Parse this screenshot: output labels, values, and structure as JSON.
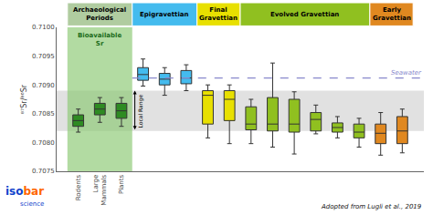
{
  "chart_data": {
    "type": "box",
    "ylabel": "⁸⁷Sr/⁸⁶Sr",
    "categories": [
      "Rodents",
      "Large\nMammals",
      "Plants",
      null,
      null,
      null,
      null,
      null,
      null,
      null,
      null,
      null,
      null,
      null,
      null,
      null
    ],
    "period": [
      "Archaeological\nPeriods",
      "Archaeological\nPeriods",
      "Archaeological\nPeriods",
      "Epigravettian",
      "Epigravettian",
      "Epigravettian",
      "Final\nGravettian",
      "Final\nGravettian",
      "Evolved Gravettian",
      "Evolved Gravettian",
      "Evolved Gravettian",
      "Evolved Gravettian",
      "Evolved Gravettian",
      "Evolved Gravettian",
      "Early\nGravettian",
      "Early\nGravettian"
    ],
    "q1": [
      0.70828,
      0.70848,
      0.70842,
      0.70908,
      0.709,
      0.70902,
      0.70832,
      0.70838,
      0.70822,
      0.7082,
      0.70818,
      0.7082,
      0.70818,
      0.70808,
      0.70798,
      0.70798
    ],
    "median": [
      0.70838,
      0.70858,
      0.70855,
      0.70918,
      0.7091,
      0.70912,
      0.70882,
      0.70875,
      0.70832,
      0.70832,
      0.70832,
      0.7084,
      0.70826,
      0.70818,
      0.70816,
      0.7082
    ],
    "q3": [
      0.70848,
      0.70868,
      0.70868,
      0.7093,
      0.7092,
      0.70925,
      0.7089,
      0.7089,
      0.70862,
      0.70878,
      0.70875,
      0.70852,
      0.70834,
      0.70832,
      0.70832,
      0.70845
    ],
    "whislo": [
      0.70818,
      0.70835,
      0.70828,
      0.70898,
      0.70882,
      0.7089,
      0.70808,
      0.70798,
      0.70798,
      0.70792,
      0.7078,
      0.70815,
      0.70808,
      0.70792,
      0.70778,
      0.70782
    ],
    "whishi": [
      0.70858,
      0.70878,
      0.70878,
      0.70945,
      0.7093,
      0.70935,
      0.709,
      0.709,
      0.70875,
      0.70938,
      0.70888,
      0.70865,
      0.70845,
      0.70842,
      0.70852,
      0.70858
    ],
    "colors": [
      "#2E8B22",
      "#2E8B22",
      "#2E8B22",
      "#44BBEE",
      "#44BBEE",
      "#44BBEE",
      "#E8E000",
      "#E8E000",
      "#90C020",
      "#90C020",
      "#90C020",
      "#90C020",
      "#90C020",
      "#90C020",
      "#E08820",
      "#E08820"
    ],
    "ylim": [
      0.7075,
      0.71
    ],
    "yticks": [
      0.7075,
      {
        "value": 0.708,
        "label": "0.7080"
      },
      0.7085,
      {
        "value": 0.709,
        "label": "0.7090"
      },
      0.7095,
      {
        "value": 0.71,
        "label": "0.7100"
      }
    ],
    "grid": false,
    "periods": [
      {
        "label": "Archaeological\nPeriods",
        "color": "#B0CCA0"
      },
      {
        "label": "Epigravettian",
        "color": "#44BBEE"
      },
      {
        "label": "Final\nGravettian",
        "color": "#E8E000"
      },
      {
        "label": "Evolved Gravettian",
        "color": "#90C020"
      },
      {
        "label": "Early\nGravettian",
        "color": "#E08820"
      }
    ],
    "bioavailable": {
      "label": "Bioavailable\nSr",
      "color": "#88C870",
      "text_color": "#1A6B1A"
    },
    "local_range": {
      "label": "Local Range",
      "values": [
        0.7082,
        0.7089
      ],
      "color": "#C8C8C8"
    },
    "seawater": {
      "label": "Seawater",
      "value": 0.70912,
      "color": "#8888CC"
    },
    "attribution": "Adopted from Lugli et al., 2019",
    "logo": {
      "text": "iso",
      "highlight": "bar",
      "subtext": "science",
      "color": "#1144CC",
      "highlight_color": "#FF6600"
    }
  }
}
